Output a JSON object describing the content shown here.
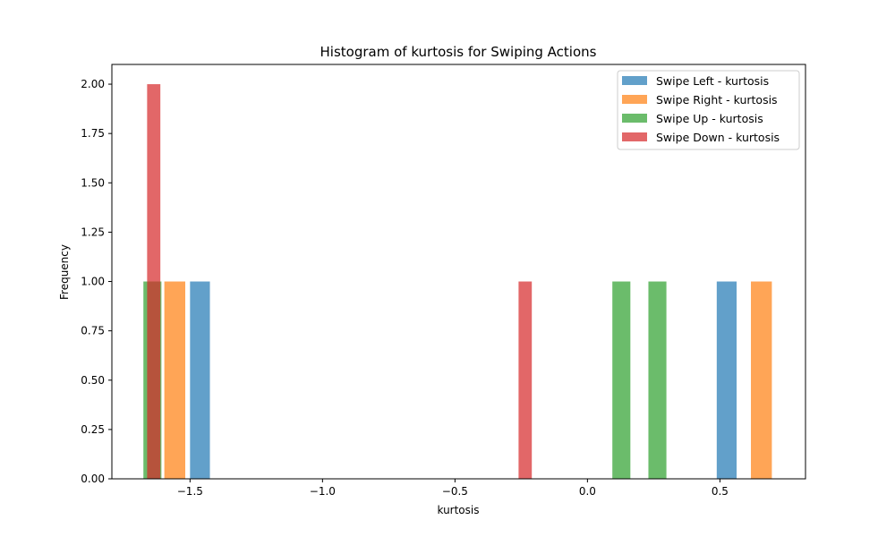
{
  "chart_data": {
    "type": "bar",
    "title": "Histogram of kurtosis for Swiping Actions",
    "xlabel": "kurtosis",
    "ylabel": "Frequency",
    "xlim": [
      -1.795,
      0.823
    ],
    "ylim": [
      0,
      2.1
    ],
    "xticks": [
      -1.5,
      -1.0,
      -0.5,
      0.0,
      0.5
    ],
    "xtick_labels": [
      "−1.5",
      "−1.0",
      "−0.5",
      "0.0",
      "0.5"
    ],
    "yticks": [
      0,
      0.25,
      0.5,
      0.75,
      1.0,
      1.25,
      1.5,
      1.75,
      2.0
    ],
    "ytick_labels": [
      "0.00",
      "0.25",
      "0.50",
      "0.75",
      "1.00",
      "1.25",
      "1.50",
      "1.75",
      "2.00"
    ],
    "grid": false,
    "legend_position": "top-right",
    "series": [
      {
        "name": "Swipe Left - kurtosis",
        "color": "#1f77b4",
        "bars": [
          {
            "x0": -1.5,
            "x1": -1.425,
            "count": 1
          },
          {
            "x0": 0.488,
            "x1": 0.563,
            "count": 1
          }
        ]
      },
      {
        "name": "Swipe Right - kurtosis",
        "color": "#ff7f0e",
        "bars": [
          {
            "x0": -1.597,
            "x1": -1.518,
            "count": 1
          },
          {
            "x0": 0.617,
            "x1": 0.696,
            "count": 1
          }
        ]
      },
      {
        "name": "Swipe Up - kurtosis",
        "color": "#2ca02c",
        "bars": [
          {
            "x0": -1.676,
            "x1": -1.608,
            "count": 1
          },
          {
            "x0": 0.094,
            "x1": 0.162,
            "count": 1
          },
          {
            "x0": 0.23,
            "x1": 0.298,
            "count": 1
          }
        ]
      },
      {
        "name": "Swipe Down - kurtosis",
        "color": "#d62728",
        "bars": [
          {
            "x0": -1.662,
            "x1": -1.612,
            "count": 2
          },
          {
            "x0": -0.26,
            "x1": -0.21,
            "count": 1
          }
        ]
      }
    ]
  }
}
